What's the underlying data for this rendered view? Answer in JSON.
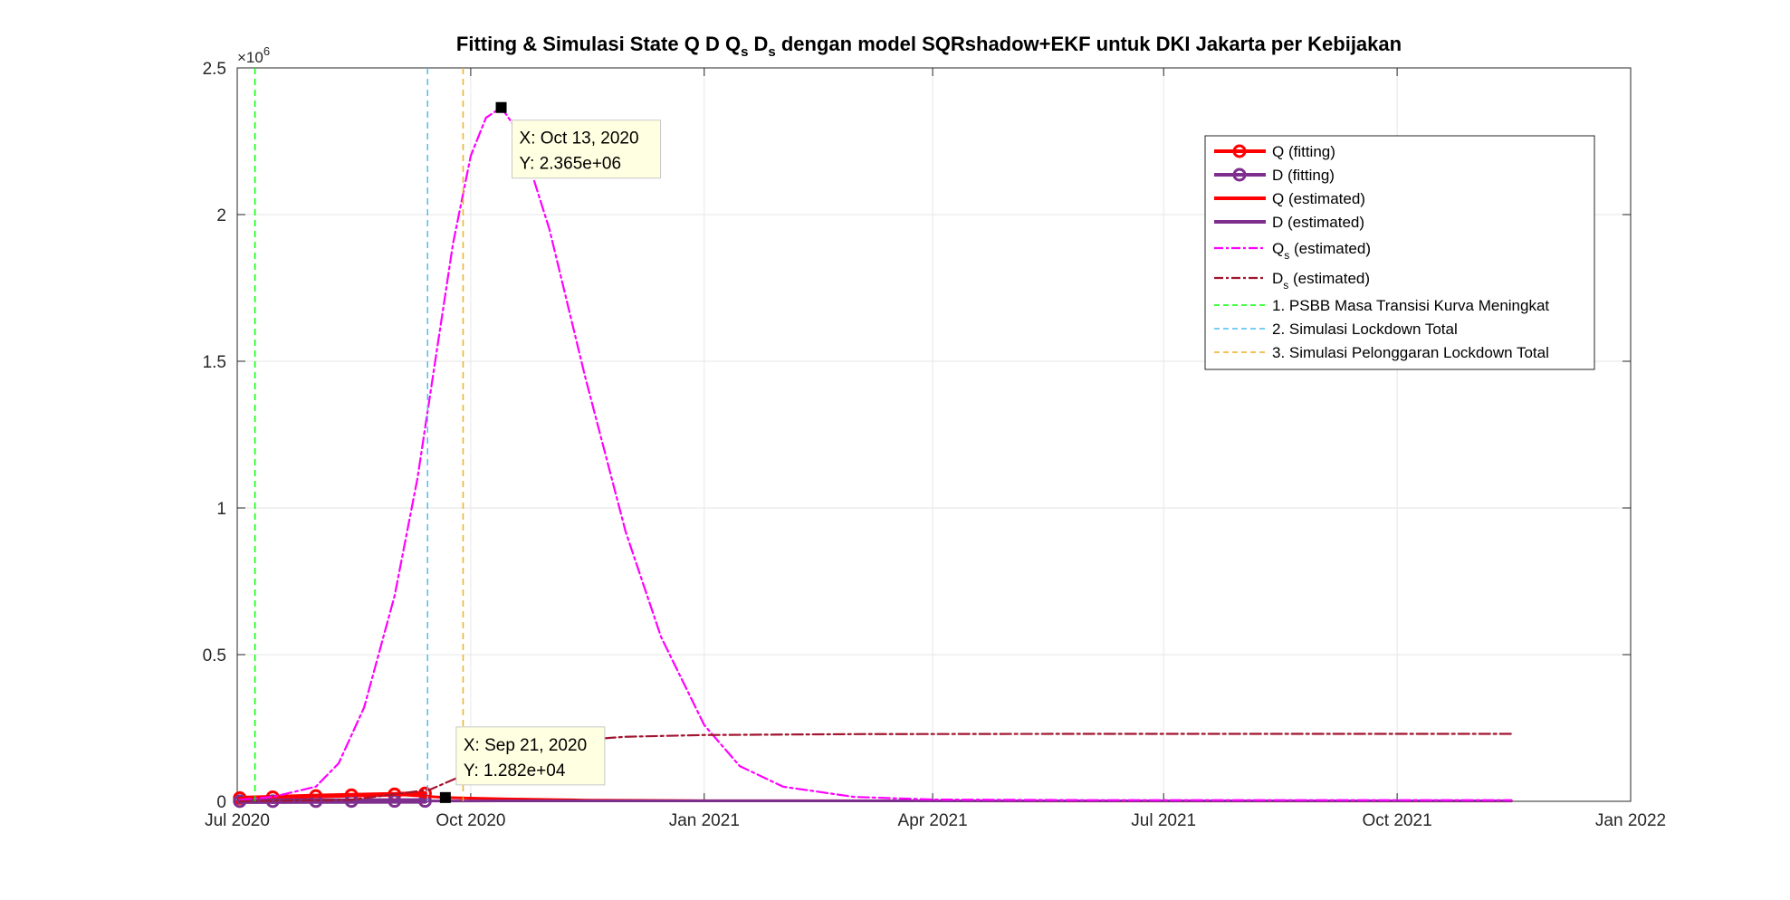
{
  "chart_data": {
    "type": "line",
    "title": "Fitting & Simulasi State  Q D Q_s D_s dengan model SQRshadow+EKF untuk DKI Jakarta per Kebijakan",
    "title_parts": {
      "before": "Fitting & Simulasi State  Q D Q",
      "sub1": "s",
      "mid": " D",
      "sub2": "s",
      "after": " dengan model SQRshadow+EKF untuk DKI Jakarta per Kebijakan"
    },
    "y_exponent_label": {
      "base": "×10",
      "exp": "6"
    },
    "x_range": [
      "2020-07-01",
      "2022-01-01"
    ],
    "y_range": [
      0,
      2.5
    ],
    "grid": true,
    "legend_position": "top-right",
    "x_ticks": [
      {
        "date": "2020-07-01",
        "label": "Jul 2020"
      },
      {
        "date": "2020-10-01",
        "label": "Oct 2020"
      },
      {
        "date": "2021-01-01",
        "label": "Jan 2021"
      },
      {
        "date": "2021-04-01",
        "label": "Apr 2021"
      },
      {
        "date": "2021-07-01",
        "label": "Jul 2021"
      },
      {
        "date": "2021-10-01",
        "label": "Oct 2021"
      },
      {
        "date": "2022-01-01",
        "label": "Jan 2022"
      }
    ],
    "y_ticks": [
      {
        "value": 0,
        "label": "0"
      },
      {
        "value": 0.5,
        "label": "0.5"
      },
      {
        "value": 1,
        "label": "1"
      },
      {
        "value": 1.5,
        "label": "1.5"
      },
      {
        "value": 2,
        "label": "2"
      },
      {
        "value": 2.5,
        "label": "2.5"
      }
    ],
    "series": [
      {
        "name": "Q (fitting)",
        "sub": "",
        "name_suffix": "",
        "color": "#ff0000",
        "style": "solid-marker",
        "width": 5,
        "points": [
          [
            "2020-07-02",
            0.011
          ],
          [
            "2020-07-15",
            0.014
          ],
          [
            "2020-08-01",
            0.018
          ],
          [
            "2020-08-15",
            0.021
          ],
          [
            "2020-09-01",
            0.024
          ],
          [
            "2020-09-13",
            0.027
          ]
        ]
      },
      {
        "name": "D (fitting)",
        "sub": "",
        "name_suffix": "",
        "color": "#7e2f8e",
        "style": "solid-marker",
        "width": 6,
        "points": [
          [
            "2020-07-02",
            0.0004
          ],
          [
            "2020-07-15",
            0.0005
          ],
          [
            "2020-08-01",
            0.0007
          ],
          [
            "2020-08-15",
            0.0008
          ],
          [
            "2020-09-01",
            0.001
          ],
          [
            "2020-09-13",
            0.0011
          ]
        ]
      },
      {
        "name": "Q (estimated)",
        "sub": "",
        "name_suffix": "",
        "color": "#ff0000",
        "style": "solid",
        "width": 3,
        "points": [
          [
            "2020-07-02",
            0.011
          ],
          [
            "2020-08-01",
            0.018
          ],
          [
            "2020-09-01",
            0.024
          ],
          [
            "2020-09-21",
            0.01282
          ],
          [
            "2020-10-15",
            0.008
          ],
          [
            "2020-11-15",
            0.004
          ],
          [
            "2021-01-01",
            0.002
          ],
          [
            "2021-06-01",
            0.001
          ],
          [
            "2021-11-15",
            0.001
          ]
        ]
      },
      {
        "name": "D (estimated)",
        "sub": "",
        "name_suffix": "",
        "color": "#7e2f8e",
        "style": "solid",
        "width": 3,
        "points": [
          [
            "2020-07-02",
            0.0004
          ],
          [
            "2020-09-13",
            0.0011
          ],
          [
            "2020-10-15",
            0.0015
          ],
          [
            "2021-01-01",
            0.0016
          ],
          [
            "2021-11-15",
            0.0016
          ]
        ]
      },
      {
        "name": "Q",
        "sub": "s",
        "name_suffix": " (estimated)",
        "color": "#ff00ff",
        "style": "dashdot",
        "width": 2.2,
        "points": [
          [
            "2020-07-02",
            0.005
          ],
          [
            "2020-07-15",
            0.015
          ],
          [
            "2020-08-01",
            0.05
          ],
          [
            "2020-08-10",
            0.13
          ],
          [
            "2020-08-20",
            0.32
          ],
          [
            "2020-09-01",
            0.7
          ],
          [
            "2020-09-10",
            1.1
          ],
          [
            "2020-09-17",
            1.5
          ],
          [
            "2020-09-24",
            1.9
          ],
          [
            "2020-10-01",
            2.2
          ],
          [
            "2020-10-07",
            2.33
          ],
          [
            "2020-10-13",
            2.365
          ],
          [
            "2020-10-20",
            2.28
          ],
          [
            "2020-11-01",
            1.95
          ],
          [
            "2020-11-15",
            1.45
          ],
          [
            "2020-12-01",
            0.92
          ],
          [
            "2020-12-15",
            0.56
          ],
          [
            "2021-01-01",
            0.26
          ],
          [
            "2021-01-15",
            0.12
          ],
          [
            "2021-02-01",
            0.05
          ],
          [
            "2021-03-01",
            0.015
          ],
          [
            "2021-04-01",
            0.006
          ],
          [
            "2021-06-01",
            0.004
          ],
          [
            "2021-11-15",
            0.004
          ]
        ]
      },
      {
        "name": "D",
        "sub": "s",
        "name_suffix": " (estimated)",
        "color": "#a2142f",
        "style": "dashdot",
        "width": 2.2,
        "points": [
          [
            "2020-07-02",
            0.0005
          ],
          [
            "2020-08-15",
            0.005
          ],
          [
            "2020-09-15",
            0.04
          ],
          [
            "2020-10-01",
            0.1
          ],
          [
            "2020-10-15",
            0.16
          ],
          [
            "2020-11-01",
            0.195
          ],
          [
            "2020-11-15",
            0.21
          ],
          [
            "2020-12-01",
            0.22
          ],
          [
            "2021-01-01",
            0.226
          ],
          [
            "2021-03-01",
            0.229
          ],
          [
            "2021-06-01",
            0.23
          ],
          [
            "2021-11-15",
            0.23
          ]
        ]
      },
      {
        "name": "1. PSBB Masa Transisi Kurva Meningkat",
        "sub": "",
        "name_suffix": "",
        "color": "#00ff00",
        "style": "vline",
        "width": 1.5,
        "x": "2020-07-08"
      },
      {
        "name": "2. Simulasi Lockdown Total",
        "sub": "",
        "name_suffix": "",
        "color": "#4dbeee",
        "style": "vline",
        "width": 1.5,
        "x": "2020-09-14"
      },
      {
        "name": "3. Simulasi Pelonggaran Lockdown Total",
        "sub": "",
        "name_suffix": "",
        "color": "#edb120",
        "style": "vline",
        "width": 1.5,
        "x": "2020-09-28"
      }
    ],
    "datatips": [
      {
        "x": "2020-10-13",
        "y": 2.365,
        "line1": "X: Oct 13, 2020",
        "line2": "Y: 2.365e+06",
        "placement": "below-right"
      },
      {
        "x": "2020-09-21",
        "y": 0.01282,
        "line1": "X: Sep 21, 2020",
        "line2": "Y: 1.282e+04",
        "placement": "above-right"
      }
    ]
  }
}
